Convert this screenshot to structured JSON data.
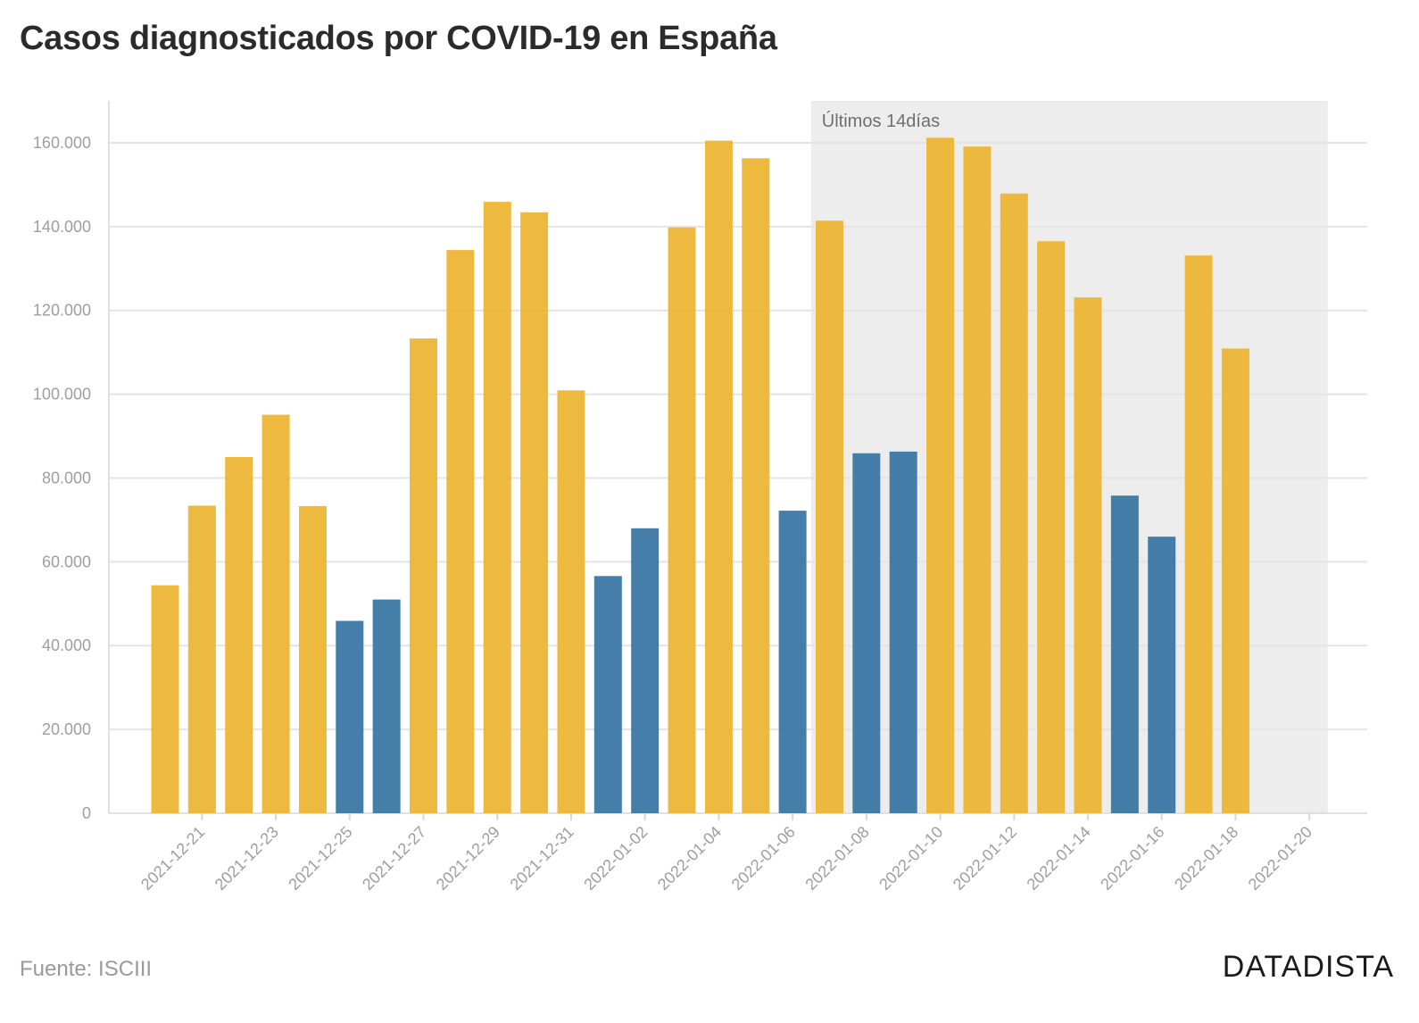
{
  "header": {
    "title": "Casos diagnosticados por COVID-19 en España"
  },
  "footer": {
    "source": "Fuente: ISCIII",
    "brand": "DATADISTA"
  },
  "colors": {
    "weekday": "#EDB535",
    "weekend": "#3B77A3",
    "band": "#EDEDED",
    "grid": "#E4E4E4"
  },
  "chart_data": {
    "type": "bar",
    "title": "Casos diagnosticados por COVID-19 en España",
    "xlabel": "",
    "ylabel": "",
    "ylim": [
      0,
      170000
    ],
    "yticks": [
      0,
      20000,
      40000,
      60000,
      80000,
      100000,
      120000,
      140000,
      160000
    ],
    "ytick_labels": [
      "0",
      "20.000",
      "40.000",
      "60.000",
      "80.000",
      "100.000",
      "120.000",
      "140.000",
      "160.000"
    ],
    "x_tick_labels": [
      "2021-12-21",
      "2021-12-23",
      "2021-12-25",
      "2021-12-27",
      "2021-12-29",
      "2021-12-31",
      "2022-01-02",
      "2022-01-04",
      "2022-01-06",
      "2022-01-08",
      "2022-01-10",
      "2022-01-12",
      "2022-01-14",
      "2022-01-16",
      "2022-01-18",
      "2022-01-20"
    ],
    "categories": [
      "2021-12-20",
      "2021-12-21",
      "2021-12-22",
      "2021-12-23",
      "2021-12-24",
      "2021-12-25",
      "2021-12-26",
      "2021-12-27",
      "2021-12-28",
      "2021-12-29",
      "2021-12-30",
      "2021-12-31",
      "2022-01-01",
      "2022-01-02",
      "2022-01-03",
      "2022-01-04",
      "2022-01-05",
      "2022-01-06",
      "2022-01-07",
      "2022-01-08",
      "2022-01-09",
      "2022-01-10",
      "2022-01-11",
      "2022-01-12",
      "2022-01-13",
      "2022-01-14",
      "2022-01-15",
      "2022-01-16",
      "2022-01-17",
      "2022-01-18"
    ],
    "values": [
      54400,
      73400,
      85000,
      95100,
      73300,
      45900,
      51000,
      113300,
      134400,
      145900,
      143400,
      100900,
      56600,
      68000,
      139800,
      160500,
      156300,
      72200,
      141400,
      85900,
      86300,
      161200,
      159100,
      147900,
      136500,
      123100,
      75800,
      66000,
      133100,
      110900
    ],
    "bar_type": [
      "weekday",
      "weekday",
      "weekday",
      "weekday",
      "weekday",
      "weekend",
      "weekend",
      "weekday",
      "weekday",
      "weekday",
      "weekday",
      "weekday",
      "weekend",
      "weekend",
      "weekday",
      "weekday",
      "weekday",
      "weekend",
      "weekday",
      "weekend",
      "weekend",
      "weekday",
      "weekday",
      "weekday",
      "weekday",
      "weekday",
      "weekend",
      "weekend",
      "weekday",
      "weekday"
    ],
    "highlight_band": {
      "label": "Últimos 14días",
      "from": "2022-01-07",
      "to": "2022-01-20"
    }
  }
}
